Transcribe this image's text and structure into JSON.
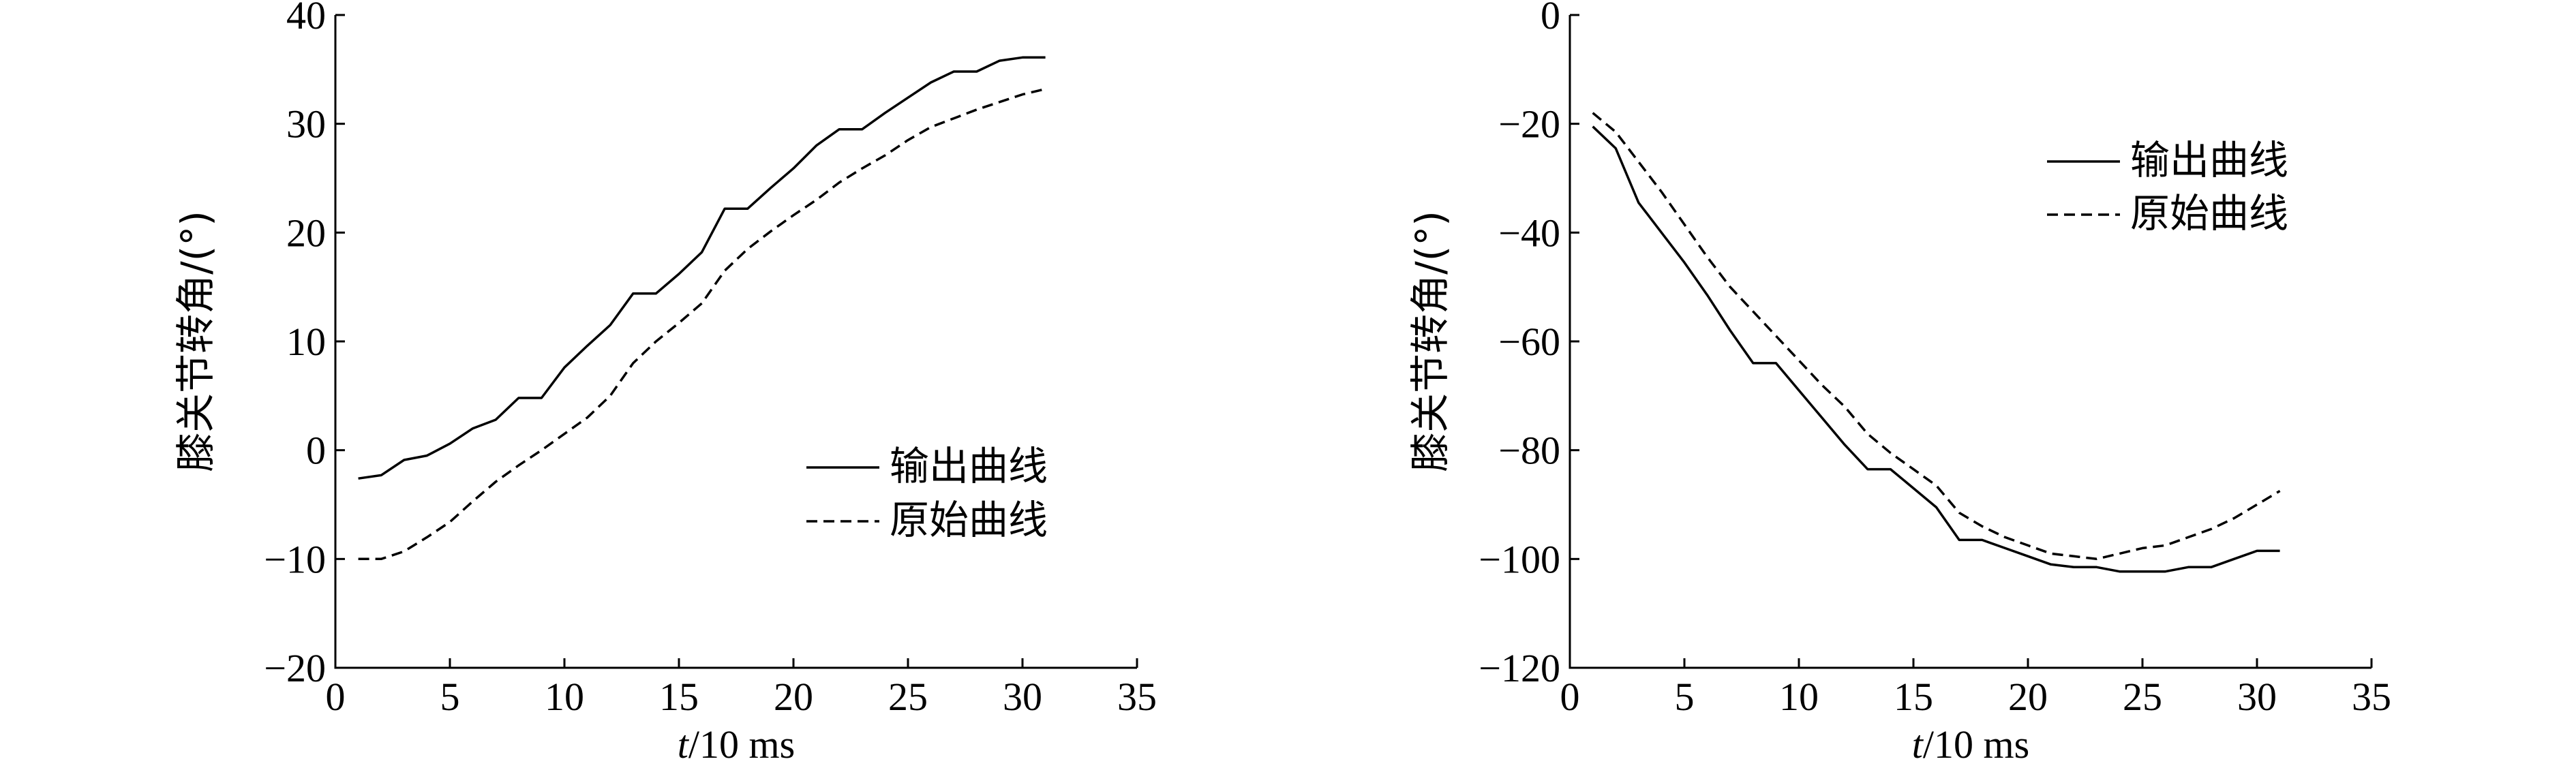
{
  "chart_data": [
    {
      "type": "line",
      "xlabel_var": "t",
      "xlabel_unit": "/10 ms",
      "ylabel": "膝关节转角/(°)",
      "xlim": [
        0,
        35
      ],
      "ylim": [
        -20,
        40
      ],
      "xticks": [
        0,
        5,
        10,
        15,
        20,
        25,
        30,
        35
      ],
      "yticks": [
        -20,
        -10,
        0,
        10,
        20,
        30,
        40
      ],
      "legend_position": "lower-right",
      "series": [
        {
          "name": "输出曲线",
          "style": "solid",
          "x": [
            1,
            2,
            3,
            4,
            5,
            6,
            7,
            8,
            9,
            10,
            11,
            12,
            13,
            14,
            15,
            16,
            17,
            18,
            19,
            20,
            21,
            22,
            23,
            24,
            25,
            26,
            27,
            28,
            29,
            30,
            31
          ],
          "y": [
            -2.6,
            -2.3,
            -0.9,
            -0.5,
            0.6,
            2.0,
            2.8,
            4.8,
            4.8,
            7.6,
            9.6,
            11.5,
            14.4,
            14.4,
            16.2,
            18.2,
            22.2,
            22.2,
            24.1,
            25.9,
            28.0,
            29.5,
            29.5,
            31.0,
            32.4,
            33.8,
            34.8,
            34.8,
            35.8,
            36.1,
            36.1
          ]
        },
        {
          "name": "原始曲线",
          "style": "dashed",
          "x": [
            1,
            2,
            3,
            4,
            5,
            6,
            7,
            8,
            9,
            10,
            11,
            12,
            13,
            14,
            15,
            16,
            17,
            18,
            19,
            20,
            21,
            22,
            23,
            24,
            25,
            26,
            27,
            28,
            29,
            30,
            31
          ],
          "y": [
            -10.0,
            -10.0,
            -9.3,
            -8.0,
            -6.6,
            -4.7,
            -2.9,
            -1.4,
            0.0,
            1.5,
            3.0,
            5.0,
            8.0,
            10.0,
            11.7,
            13.5,
            16.5,
            18.5,
            20.1,
            21.6,
            23.0,
            24.6,
            25.9,
            27.1,
            28.5,
            29.7,
            30.5,
            31.3,
            32.0,
            32.7,
            33.2
          ]
        }
      ]
    },
    {
      "type": "line",
      "xlabel_var": "t",
      "xlabel_unit": "/10 ms",
      "ylabel": "膝关节转角/(°)",
      "xlim": [
        0,
        35
      ],
      "ylim": [
        -120,
        0
      ],
      "xticks": [
        0,
        5,
        10,
        15,
        20,
        25,
        30,
        35
      ],
      "yticks": [
        -120,
        -100,
        -80,
        -60,
        -40,
        -20,
        0
      ],
      "legend_position": "upper-right",
      "series": [
        {
          "name": "输出曲线",
          "style": "solid",
          "x": [
            1,
            2,
            3,
            4,
            5,
            6,
            7,
            8,
            9,
            10,
            11,
            12,
            13,
            14,
            15,
            16,
            17,
            18,
            19,
            20,
            21,
            22,
            23,
            24,
            25,
            26,
            27,
            28,
            29,
            30,
            31
          ],
          "y": [
            -20.5,
            -24.5,
            -34.5,
            -40.0,
            -45.5,
            -51.5,
            -58.0,
            -64.0,
            -64.0,
            -69.0,
            -74.0,
            -79.0,
            -83.5,
            -83.5,
            -87.0,
            -90.5,
            -96.5,
            -96.5,
            -98.0,
            -99.5,
            -101.0,
            -101.5,
            -101.5,
            -102.3,
            -102.3,
            -102.3,
            -101.5,
            -101.5,
            -100.0,
            -98.5,
            -98.5
          ]
        },
        {
          "name": "原始曲线",
          "style": "dashed",
          "x": [
            1,
            2,
            3,
            4,
            5,
            6,
            7,
            8,
            9,
            10,
            11,
            12,
            13,
            14,
            15,
            16,
            17,
            18,
            19,
            20,
            21,
            22,
            23,
            24,
            25,
            26,
            27,
            28,
            29,
            30,
            31
          ],
          "y": [
            -18.0,
            -21.5,
            -27.0,
            -32.5,
            -38.5,
            -44.5,
            -50.0,
            -54.5,
            -59.0,
            -63.5,
            -68.0,
            -72.0,
            -77.0,
            -80.5,
            -83.5,
            -86.5,
            -91.5,
            -94.0,
            -96.0,
            -97.5,
            -99.0,
            -99.5,
            -100.0,
            -99.0,
            -98.0,
            -97.5,
            -96.0,
            -94.5,
            -92.5,
            -90.0,
            -87.5
          ]
        }
      ]
    }
  ]
}
